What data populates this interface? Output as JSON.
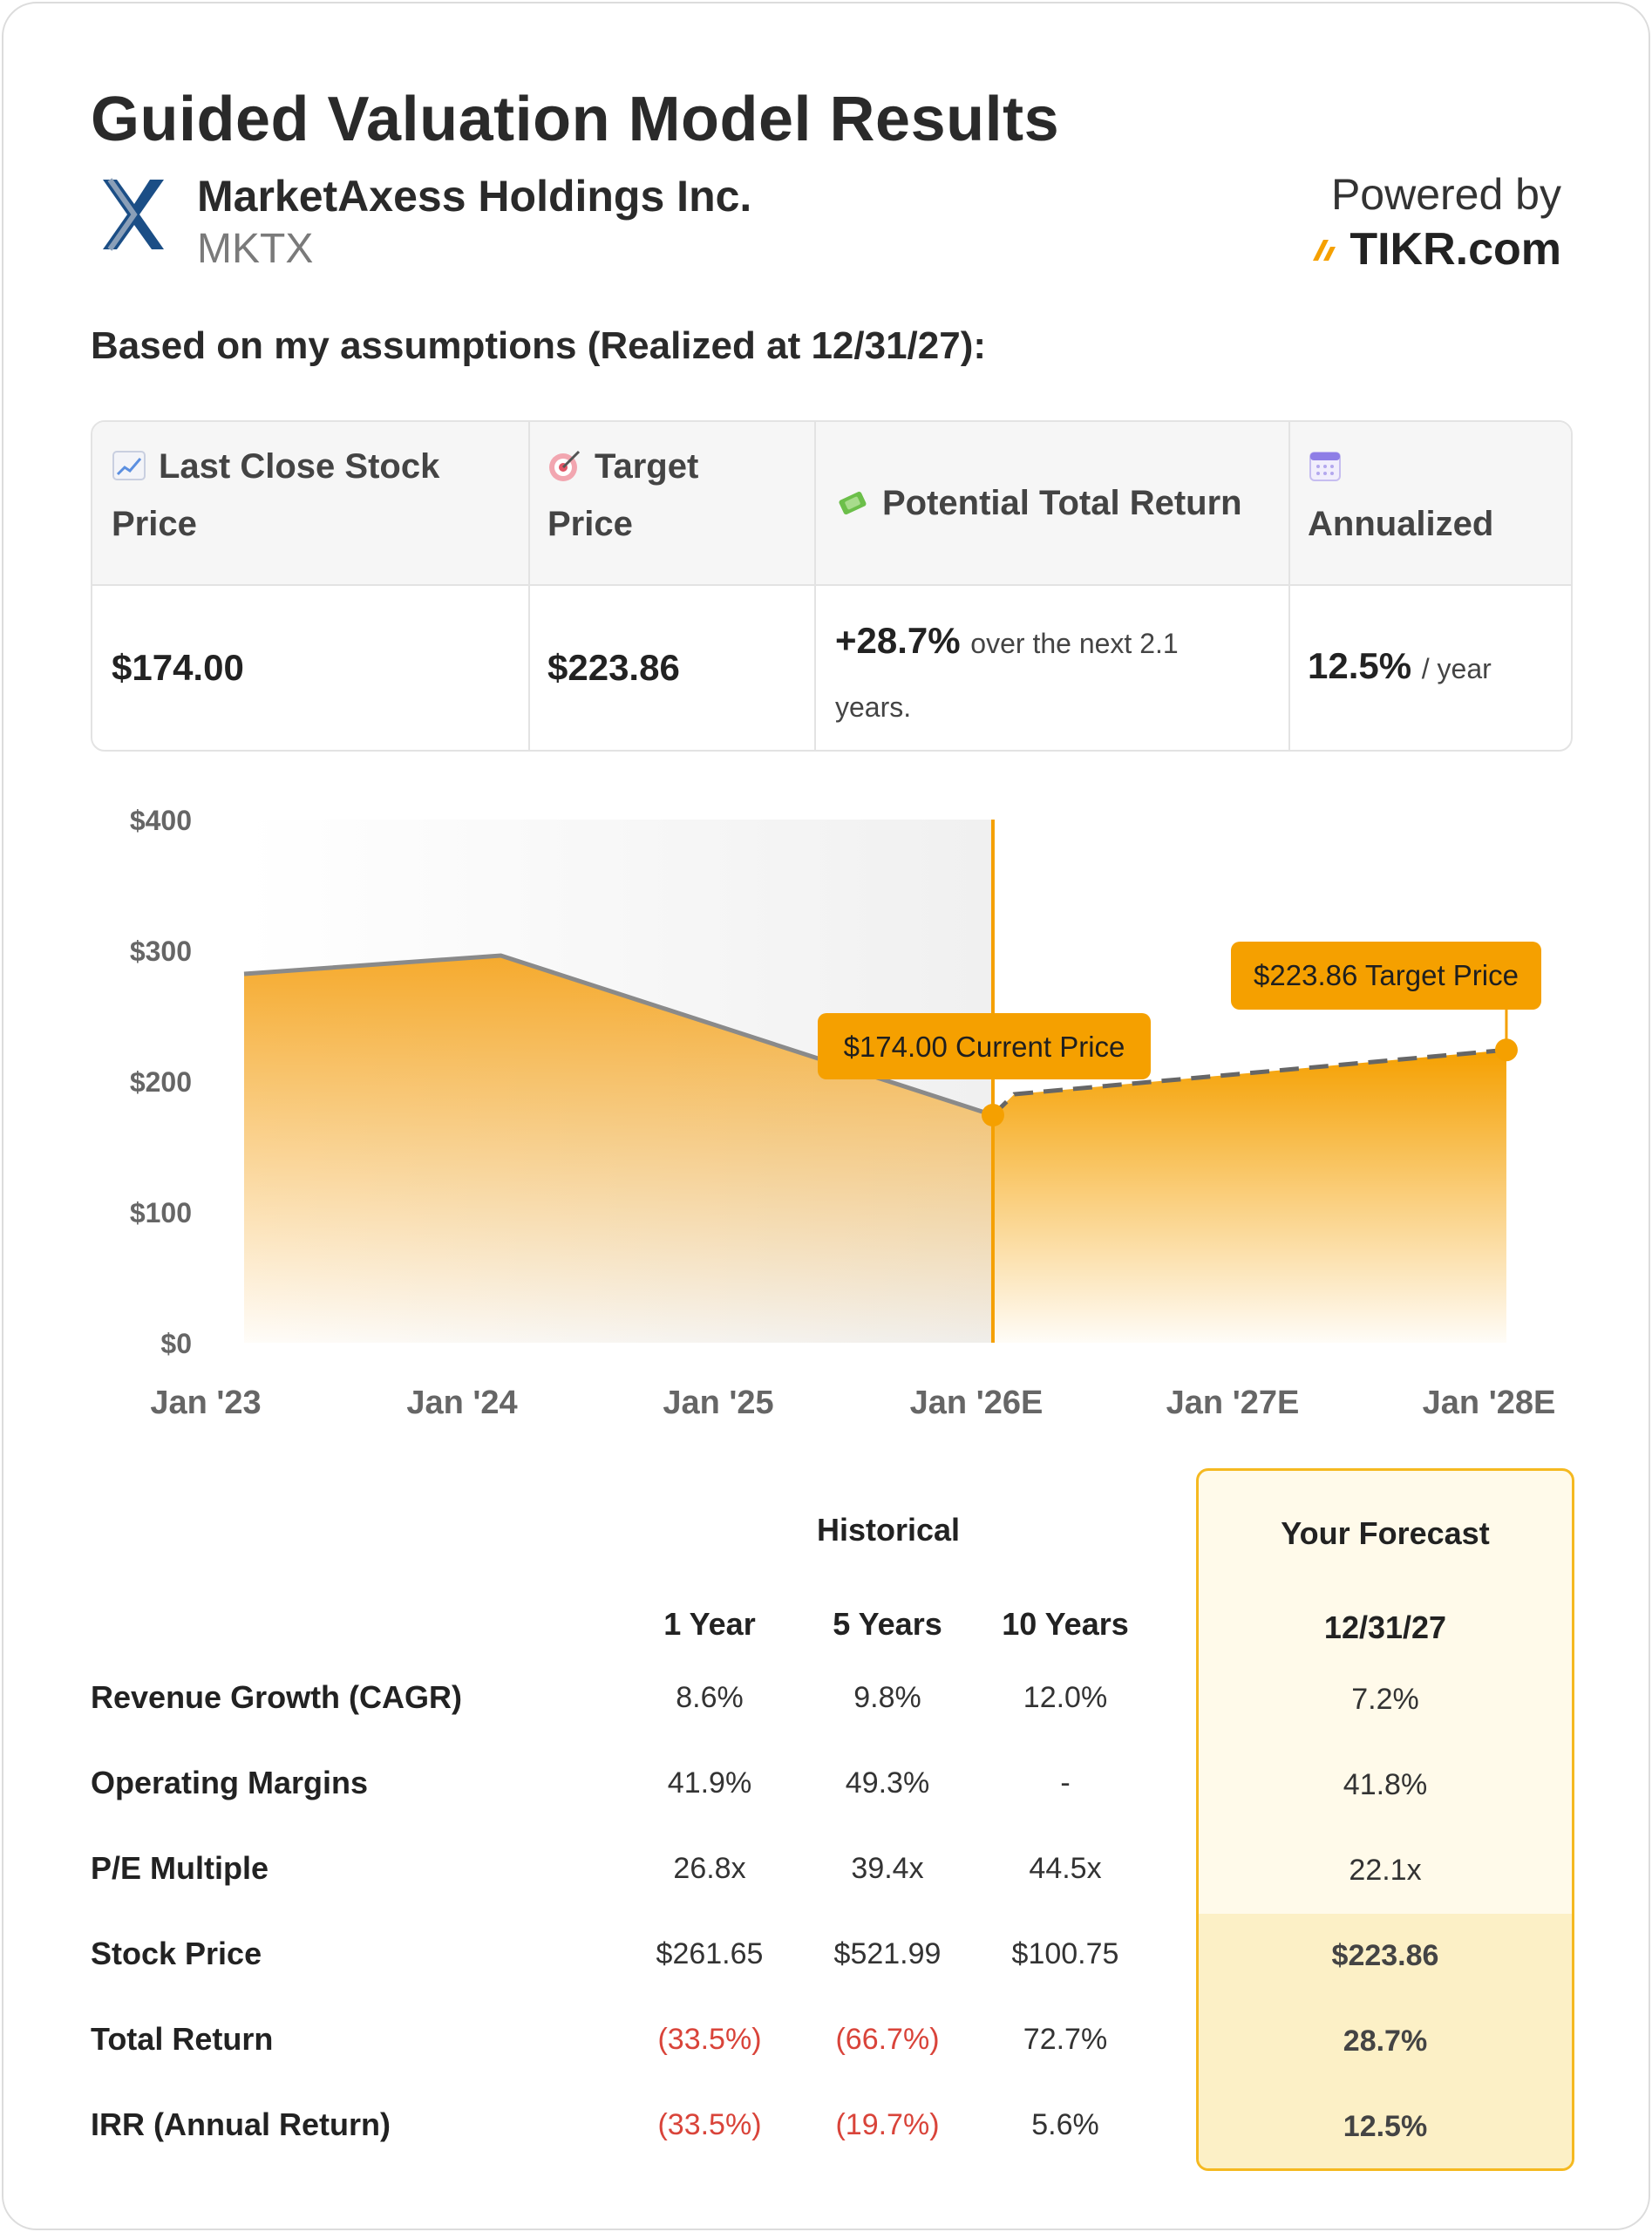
{
  "title": "Guided Valuation Model Results",
  "company": {
    "name": "MarketAxess Holdings Inc.",
    "ticker": "MKTX"
  },
  "powered_by": {
    "label": "Powered by",
    "brand": "TIKR.com"
  },
  "assumptions_text": "Based on my assumptions (Realized at 12/31/27):",
  "summary": {
    "headers": {
      "last_close_a": "Last Close Stock",
      "last_close_b": "Price",
      "target_a": "Target",
      "target_b": "Price",
      "total_return": "Potential Total Return",
      "annualized": "Annualized"
    },
    "values": {
      "last_close": "$174.00",
      "target": "$223.86",
      "total_return_pct": "+28.7%",
      "total_return_note_a": "over the next 2.1",
      "total_return_note_b": "years.",
      "annualized_pct": "12.5%",
      "annualized_unit": "/ year"
    },
    "icons": [
      "chart-increasing-icon",
      "direct-hit-icon",
      "money-with-wings-icon",
      "calendar-icon"
    ]
  },
  "chart_data": {
    "type": "area",
    "y_ticks": [
      "$400",
      "$300",
      "$200",
      "$100",
      "$0"
    ],
    "x_ticks": [
      "Jan '23",
      "Jan '24",
      "Jan '25",
      "Jan '26E",
      "Jan '27E",
      "Jan '28E"
    ],
    "ylim": [
      0,
      400
    ],
    "historical": {
      "x": [
        "2023-01",
        "2024-01",
        "2025-12"
      ],
      "y": [
        282,
        296,
        174
      ]
    },
    "forecast": {
      "x": [
        "2025-12",
        "2026-01",
        "2027-12"
      ],
      "y": [
        174,
        190,
        223.86
      ]
    },
    "annotations": [
      {
        "label": "$174.00 Current Price",
        "x": "2025-12",
        "y": 174
      },
      {
        "label": "$223.86 Target Price",
        "x": "2027-12",
        "y": 223.86
      }
    ],
    "colors": {
      "accent": "#f5a000",
      "history_line": "#8a8a8a",
      "forecast_line": "#666666"
    }
  },
  "table": {
    "historical_label": "Historical",
    "forecast_label": "Your Forecast",
    "columns": [
      "1 Year",
      "5 Years",
      "10 Years"
    ],
    "forecast_date": "12/31/27",
    "rows": [
      {
        "label": "Revenue Growth (CAGR)",
        "values": [
          "8.6%",
          "9.8%",
          "12.0%"
        ],
        "forecast": "7.2%"
      },
      {
        "label": "Operating Margins",
        "values": [
          "41.9%",
          "49.3%",
          "-"
        ],
        "forecast": "41.8%"
      },
      {
        "label": "P/E Multiple",
        "values": [
          "26.8x",
          "39.4x",
          "44.5x"
        ],
        "forecast": "22.1x"
      },
      {
        "label": "Stock Price",
        "values": [
          "$261.65",
          "$521.99",
          "$100.75"
        ],
        "forecast": "$223.86"
      },
      {
        "label": "Total Return",
        "values": [
          "(33.5%)",
          "(66.7%)",
          "72.7%"
        ],
        "forecast": "28.7%"
      },
      {
        "label": "IRR (Annual Return)",
        "values": [
          "(33.5%)",
          "(19.7%)",
          "5.6%"
        ],
        "forecast": "12.5%"
      }
    ],
    "negative_color": "#d9443a"
  }
}
